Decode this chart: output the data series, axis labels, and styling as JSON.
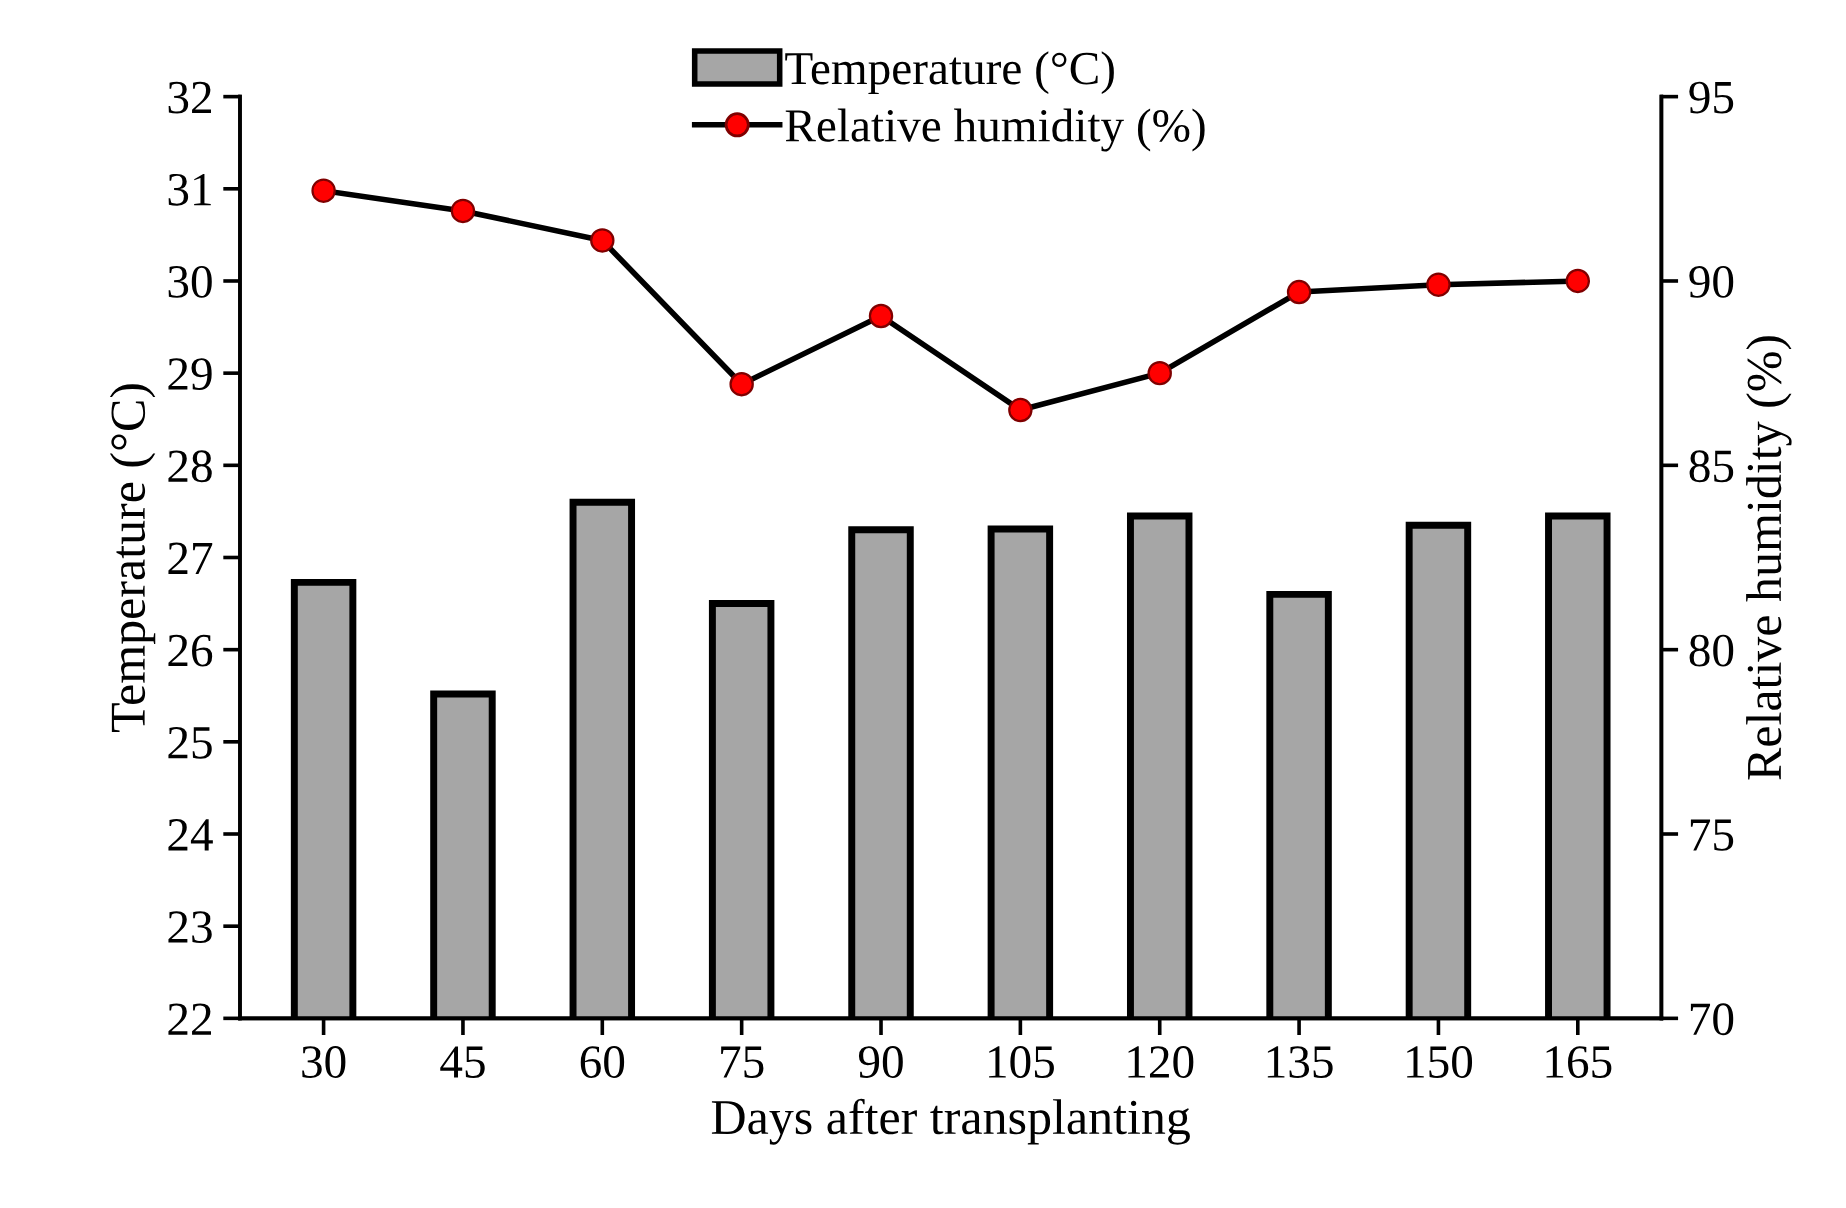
{
  "chart_data": {
    "type": "bar",
    "xlabel": "Days after transplanting",
    "ylabel": "Temperature (°C)",
    "y2label": "Relative humidity (%)",
    "categories": [
      "30",
      "45",
      "60",
      "75",
      "90",
      "105",
      "120",
      "135",
      "150",
      "165"
    ],
    "series": [
      {
        "name": "Temperature (°C)",
        "color": "#a6a6a6",
        "values": [
          26.73,
          25.52,
          27.6,
          26.5,
          27.3,
          27.31,
          27.45,
          26.6,
          27.35,
          27.45
        ]
      },
      {
        "name": "Relative humidity (%)",
        "type": "line",
        "axis": "y2",
        "color": "#ff0000",
        "marker": "circle",
        "values": [
          92.45,
          91.9,
          91.1,
          87.2,
          89.05,
          86.5,
          87.5,
          89.7,
          89.9,
          90.0
        ]
      }
    ],
    "ylim": [
      22,
      32
    ],
    "yticks": [
      22,
      23,
      24,
      25,
      26,
      27,
      28,
      29,
      30,
      31,
      32
    ],
    "y2lim": [
      70,
      95
    ],
    "y2ticks": [
      70,
      75,
      80,
      85,
      90,
      95
    ],
    "grid": false,
    "legend": "top"
  }
}
